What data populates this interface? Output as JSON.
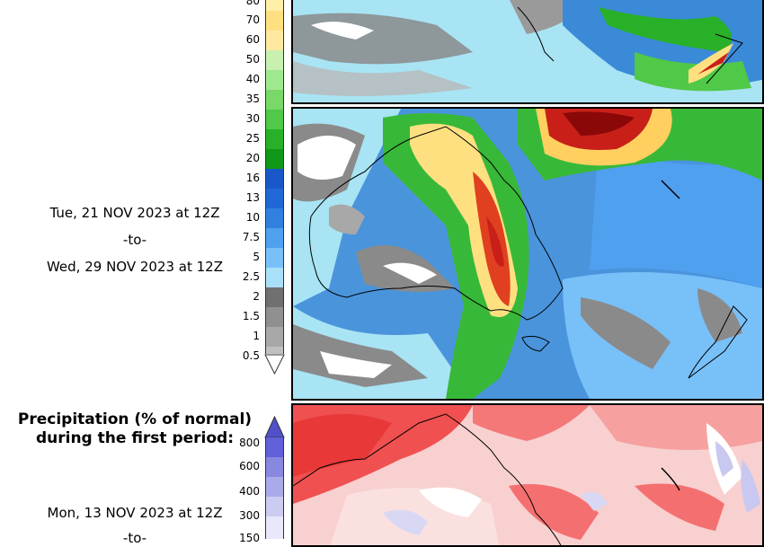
{
  "period2": {
    "start": "Tue, 21 NOV 2023 at 12Z",
    "to": "-to-",
    "end": "Wed, 29 NOV 2023 at 12Z"
  },
  "period1_pct": {
    "title_line1": "Precipitation (% of normal)",
    "title_line2": "during the first period:",
    "start": "Mon, 13 NOV 2023 at 12Z",
    "to": "-to-"
  },
  "precip_legend": {
    "labels": [
      "80",
      "70",
      "60",
      "50",
      "40",
      "35",
      "30",
      "25",
      "20",
      "16",
      "13",
      "10",
      "7.5",
      "5",
      "2.5",
      "2",
      "1.5",
      "1",
      "0.5"
    ],
    "colors": [
      "#fff0a8",
      "#ffe080",
      "#ffe9a0",
      "#c8f0b0",
      "#a0e890",
      "#78d868",
      "#50c848",
      "#28b028",
      "#109818",
      "#1858c8",
      "#2068d8",
      "#3080e0",
      "#50a0f0",
      "#78c0f8",
      "#a8e0f8",
      "#707070",
      "#909090",
      "#a8a8a8",
      "#c0c0c0"
    ]
  },
  "pct_legend": {
    "labels": [
      "800",
      "600",
      "400",
      "300",
      "150"
    ],
    "colors": [
      "#6060d8",
      "#8888e0",
      "#aaaaea",
      "#ccccf2",
      "#e8e8fa"
    ]
  },
  "colors": {
    "ocean_blue": "#3a8ad8",
    "light_cyan": "#a8e4f4",
    "gray_dry": "#8a8a8a",
    "green": "#38b838",
    "red_heavy": "#c82018",
    "pct_red": "#f05050"
  }
}
